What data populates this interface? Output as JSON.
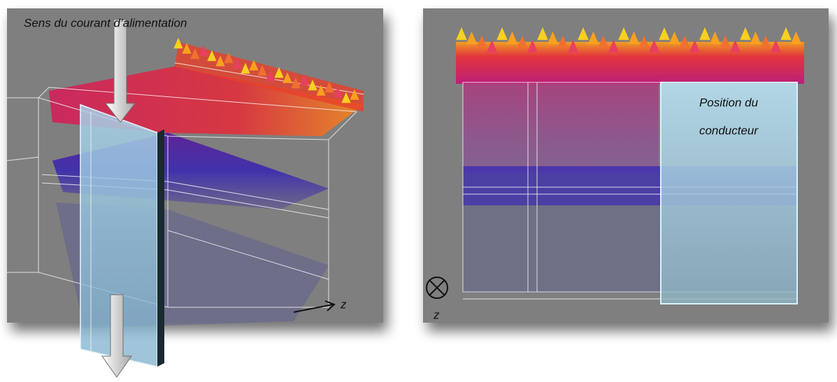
{
  "left_panel": {
    "label": "Sens du courant d’alimentation",
    "axis_label": "z"
  },
  "right_panel": {
    "label_lines": [
      "Position du",
      "conducteur"
    ],
    "axis_label": "z"
  }
}
